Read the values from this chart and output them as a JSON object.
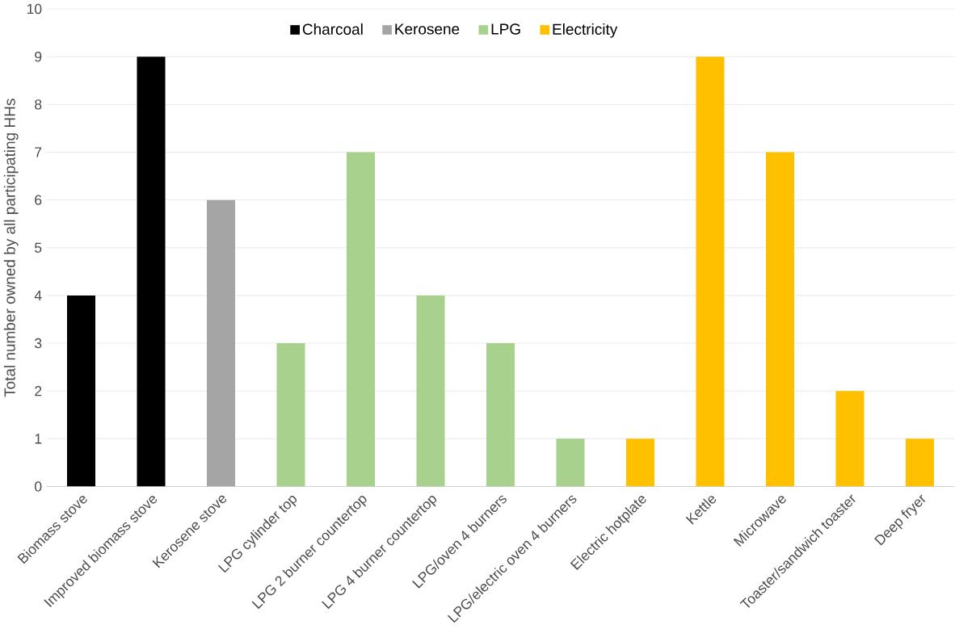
{
  "chart_data": {
    "type": "bar",
    "ylabel": "Total number owned by all participating HHs",
    "categories": [
      "Biomass stove",
      "Improved biomass stove",
      "Kerosene stove",
      "LPG cylinder top",
      "LPG 2 burner countertop",
      "LPG 4 burner countertop",
      "LPG/oven 4 burners",
      "LPG/electric oven 4 burners",
      "Electric hotplate",
      "Kettle",
      "Microwave",
      "Toaster/sandwich toaster",
      "Deep fryer"
    ],
    "series": [
      {
        "name": "Charcoal",
        "color": "#000000",
        "values": [
          4,
          9,
          null,
          null,
          null,
          null,
          null,
          null,
          null,
          null,
          null,
          null,
          null
        ]
      },
      {
        "name": "Kerosene",
        "color": "#a5a5a5",
        "values": [
          null,
          null,
          6,
          null,
          null,
          null,
          null,
          null,
          null,
          null,
          null,
          null,
          null
        ]
      },
      {
        "name": "LPG",
        "color": "#a9d18e",
        "values": [
          null,
          null,
          null,
          3,
          7,
          4,
          3,
          1,
          null,
          null,
          null,
          null,
          null
        ]
      },
      {
        "name": "Electricity",
        "color": "#ffc000",
        "values": [
          null,
          null,
          null,
          null,
          null,
          null,
          null,
          null,
          1,
          9,
          7,
          2,
          1
        ]
      }
    ],
    "ylim": [
      0,
      10
    ],
    "yticks": [
      0,
      1,
      2,
      3,
      4,
      5,
      6,
      7,
      8,
      9,
      10
    ],
    "grid": "y",
    "legend": "top"
  }
}
